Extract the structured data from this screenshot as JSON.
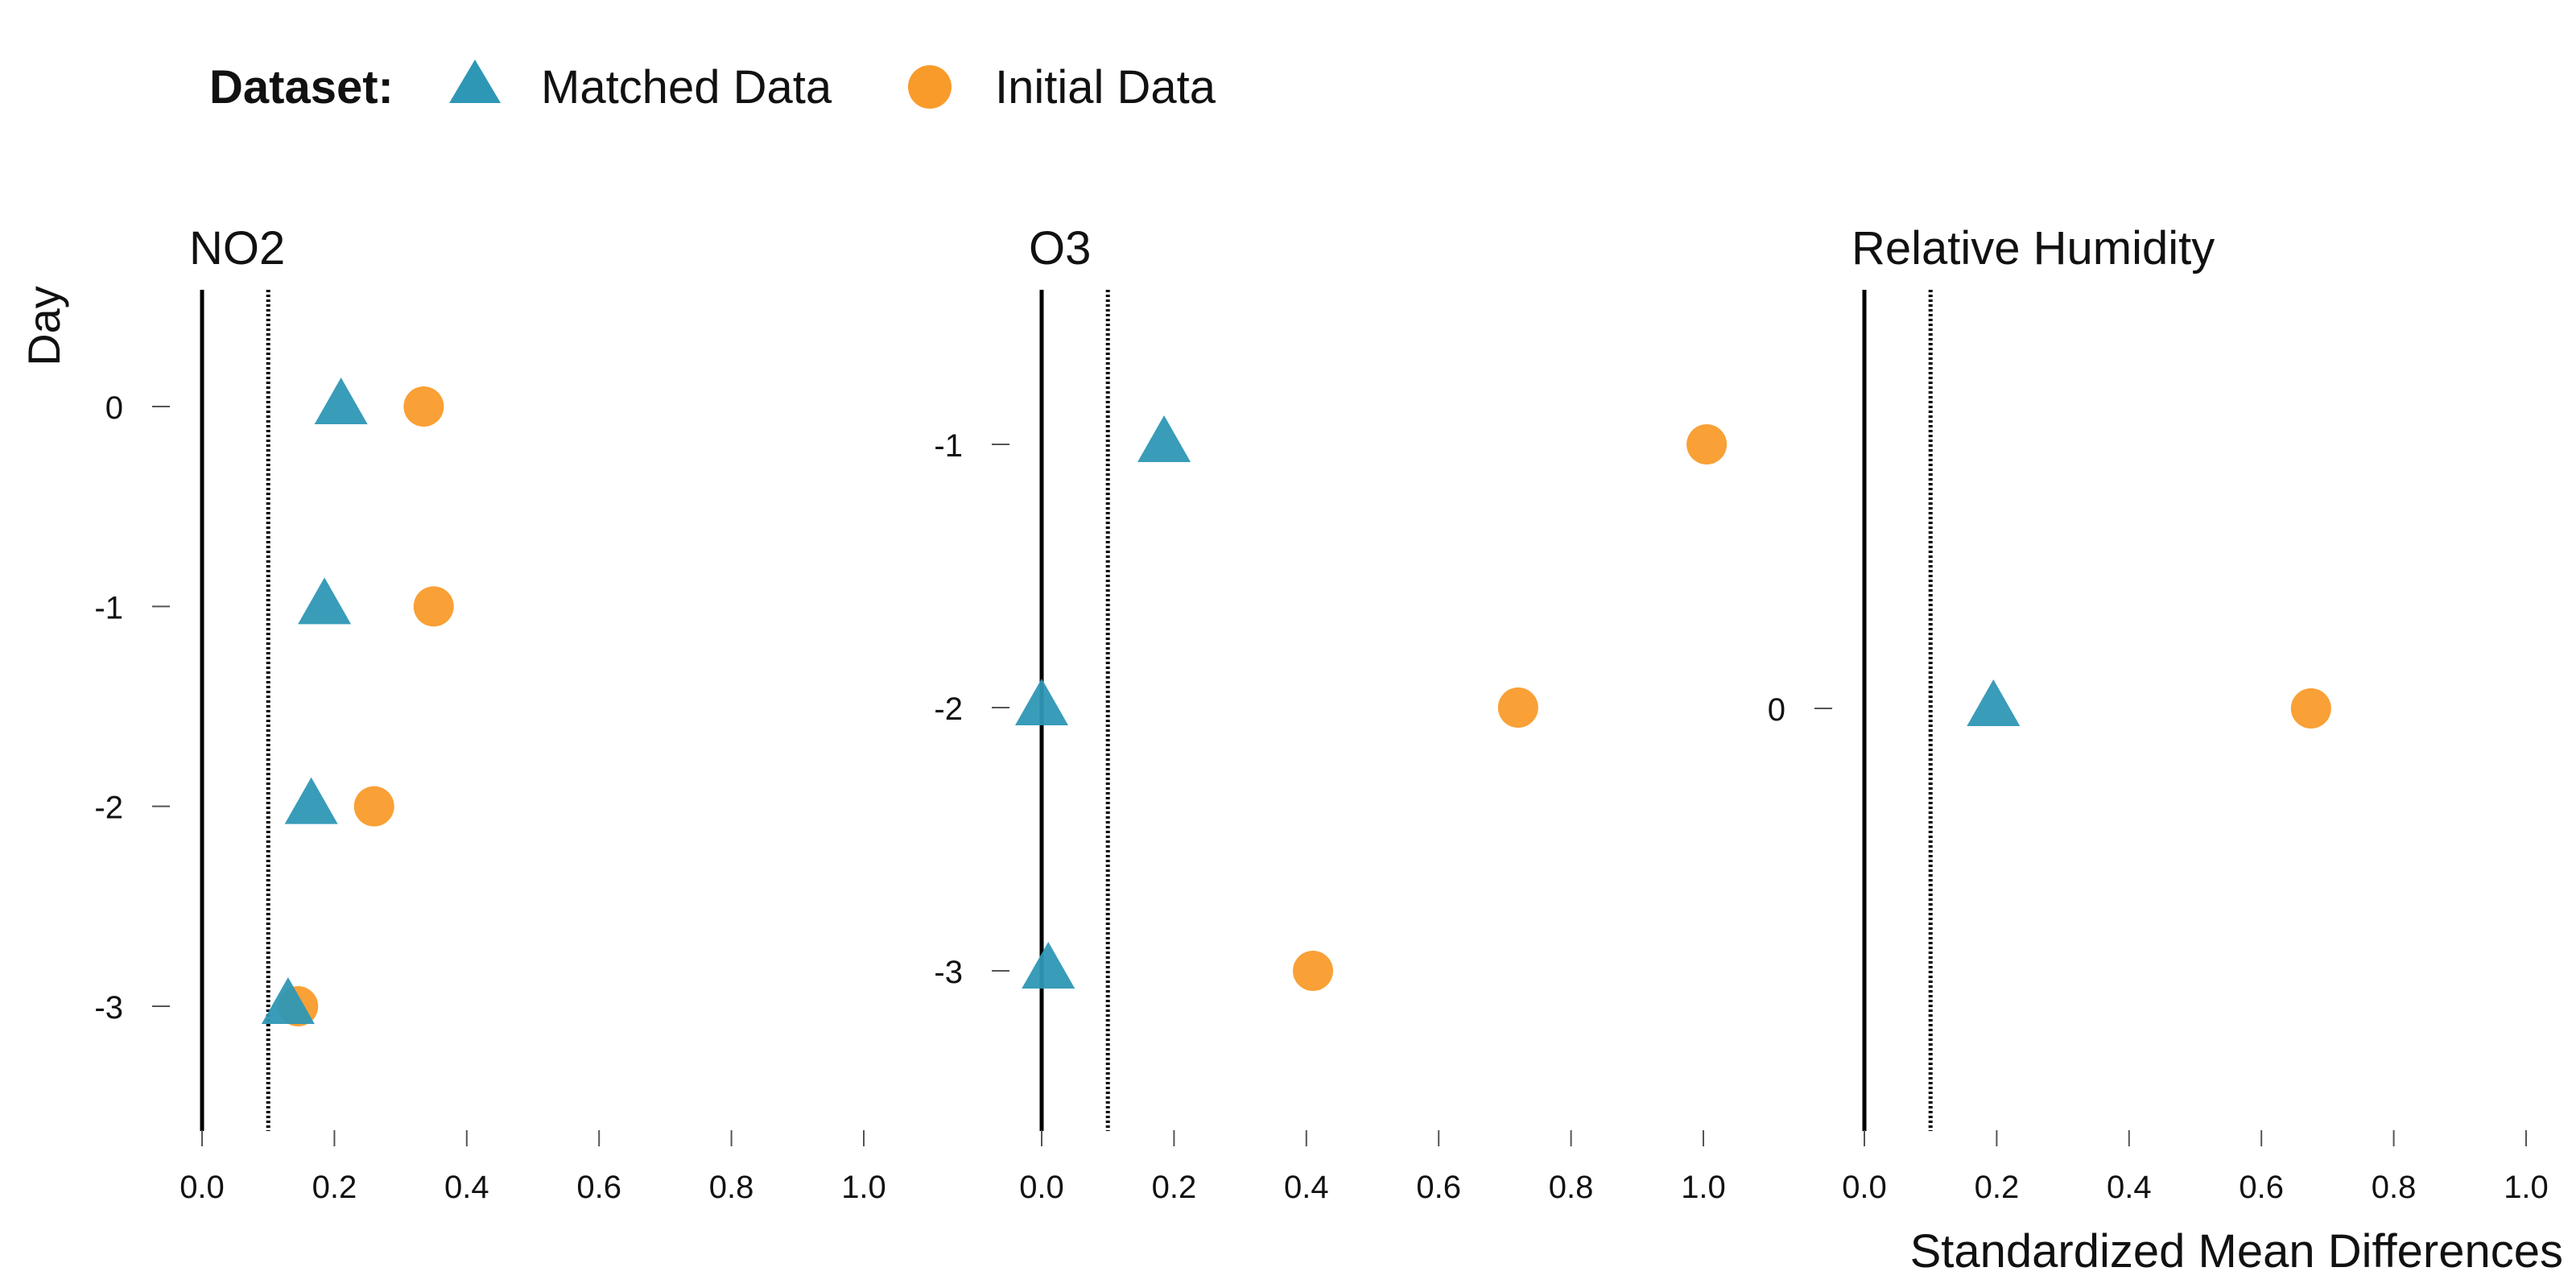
{
  "legend": {
    "title": "Dataset:",
    "items": [
      {
        "label": "Matched Data",
        "marker": "triangle",
        "color": "#2E97B5"
      },
      {
        "label": "Initial Data",
        "marker": "circle",
        "color": "#F99B2B"
      }
    ]
  },
  "ylabel": "Day",
  "xlabel": "Standardized Mean Differences",
  "chart_data": [
    {
      "type": "scatter",
      "title": "NO2",
      "xlim": [
        0,
        1
      ],
      "xticks": [
        "0.0",
        "0.2",
        "0.4",
        "0.6",
        "0.8",
        "1.0"
      ],
      "categories": [
        "0",
        "-1",
        "-2",
        "-3"
      ],
      "reference_lines": {
        "solid": 0,
        "dotted": 0.1
      },
      "series": [
        {
          "name": "Matched Data",
          "values": [
            0.21,
            0.185,
            0.165,
            0.13
          ]
        },
        {
          "name": "Initial Data",
          "values": [
            0.335,
            0.35,
            0.26,
            0.145
          ]
        }
      ]
    },
    {
      "type": "scatter",
      "title": "O3",
      "xlim": [
        0,
        1
      ],
      "xticks": [
        "0.0",
        "0.2",
        "0.4",
        "0.6",
        "0.8",
        "1.0"
      ],
      "categories": [
        "-1",
        "-2",
        "-3"
      ],
      "reference_lines": {
        "solid": 0,
        "dotted": 0.1
      },
      "series": [
        {
          "name": "Matched Data",
          "values": [
            0.185,
            0.0,
            0.01
          ]
        },
        {
          "name": "Initial Data",
          "values": [
            1.005,
            0.72,
            0.41
          ]
        }
      ]
    },
    {
      "type": "scatter",
      "title": "Relative Humidity",
      "xlim": [
        0,
        1
      ],
      "xticks": [
        "0.0",
        "0.2",
        "0.4",
        "0.6",
        "0.8",
        "1.0"
      ],
      "categories": [
        "0"
      ],
      "reference_lines": {
        "solid": 0,
        "dotted": 0.1
      },
      "series": [
        {
          "name": "Matched Data",
          "values": [
            0.195
          ]
        },
        {
          "name": "Initial Data",
          "values": [
            0.675
          ]
        }
      ]
    }
  ]
}
